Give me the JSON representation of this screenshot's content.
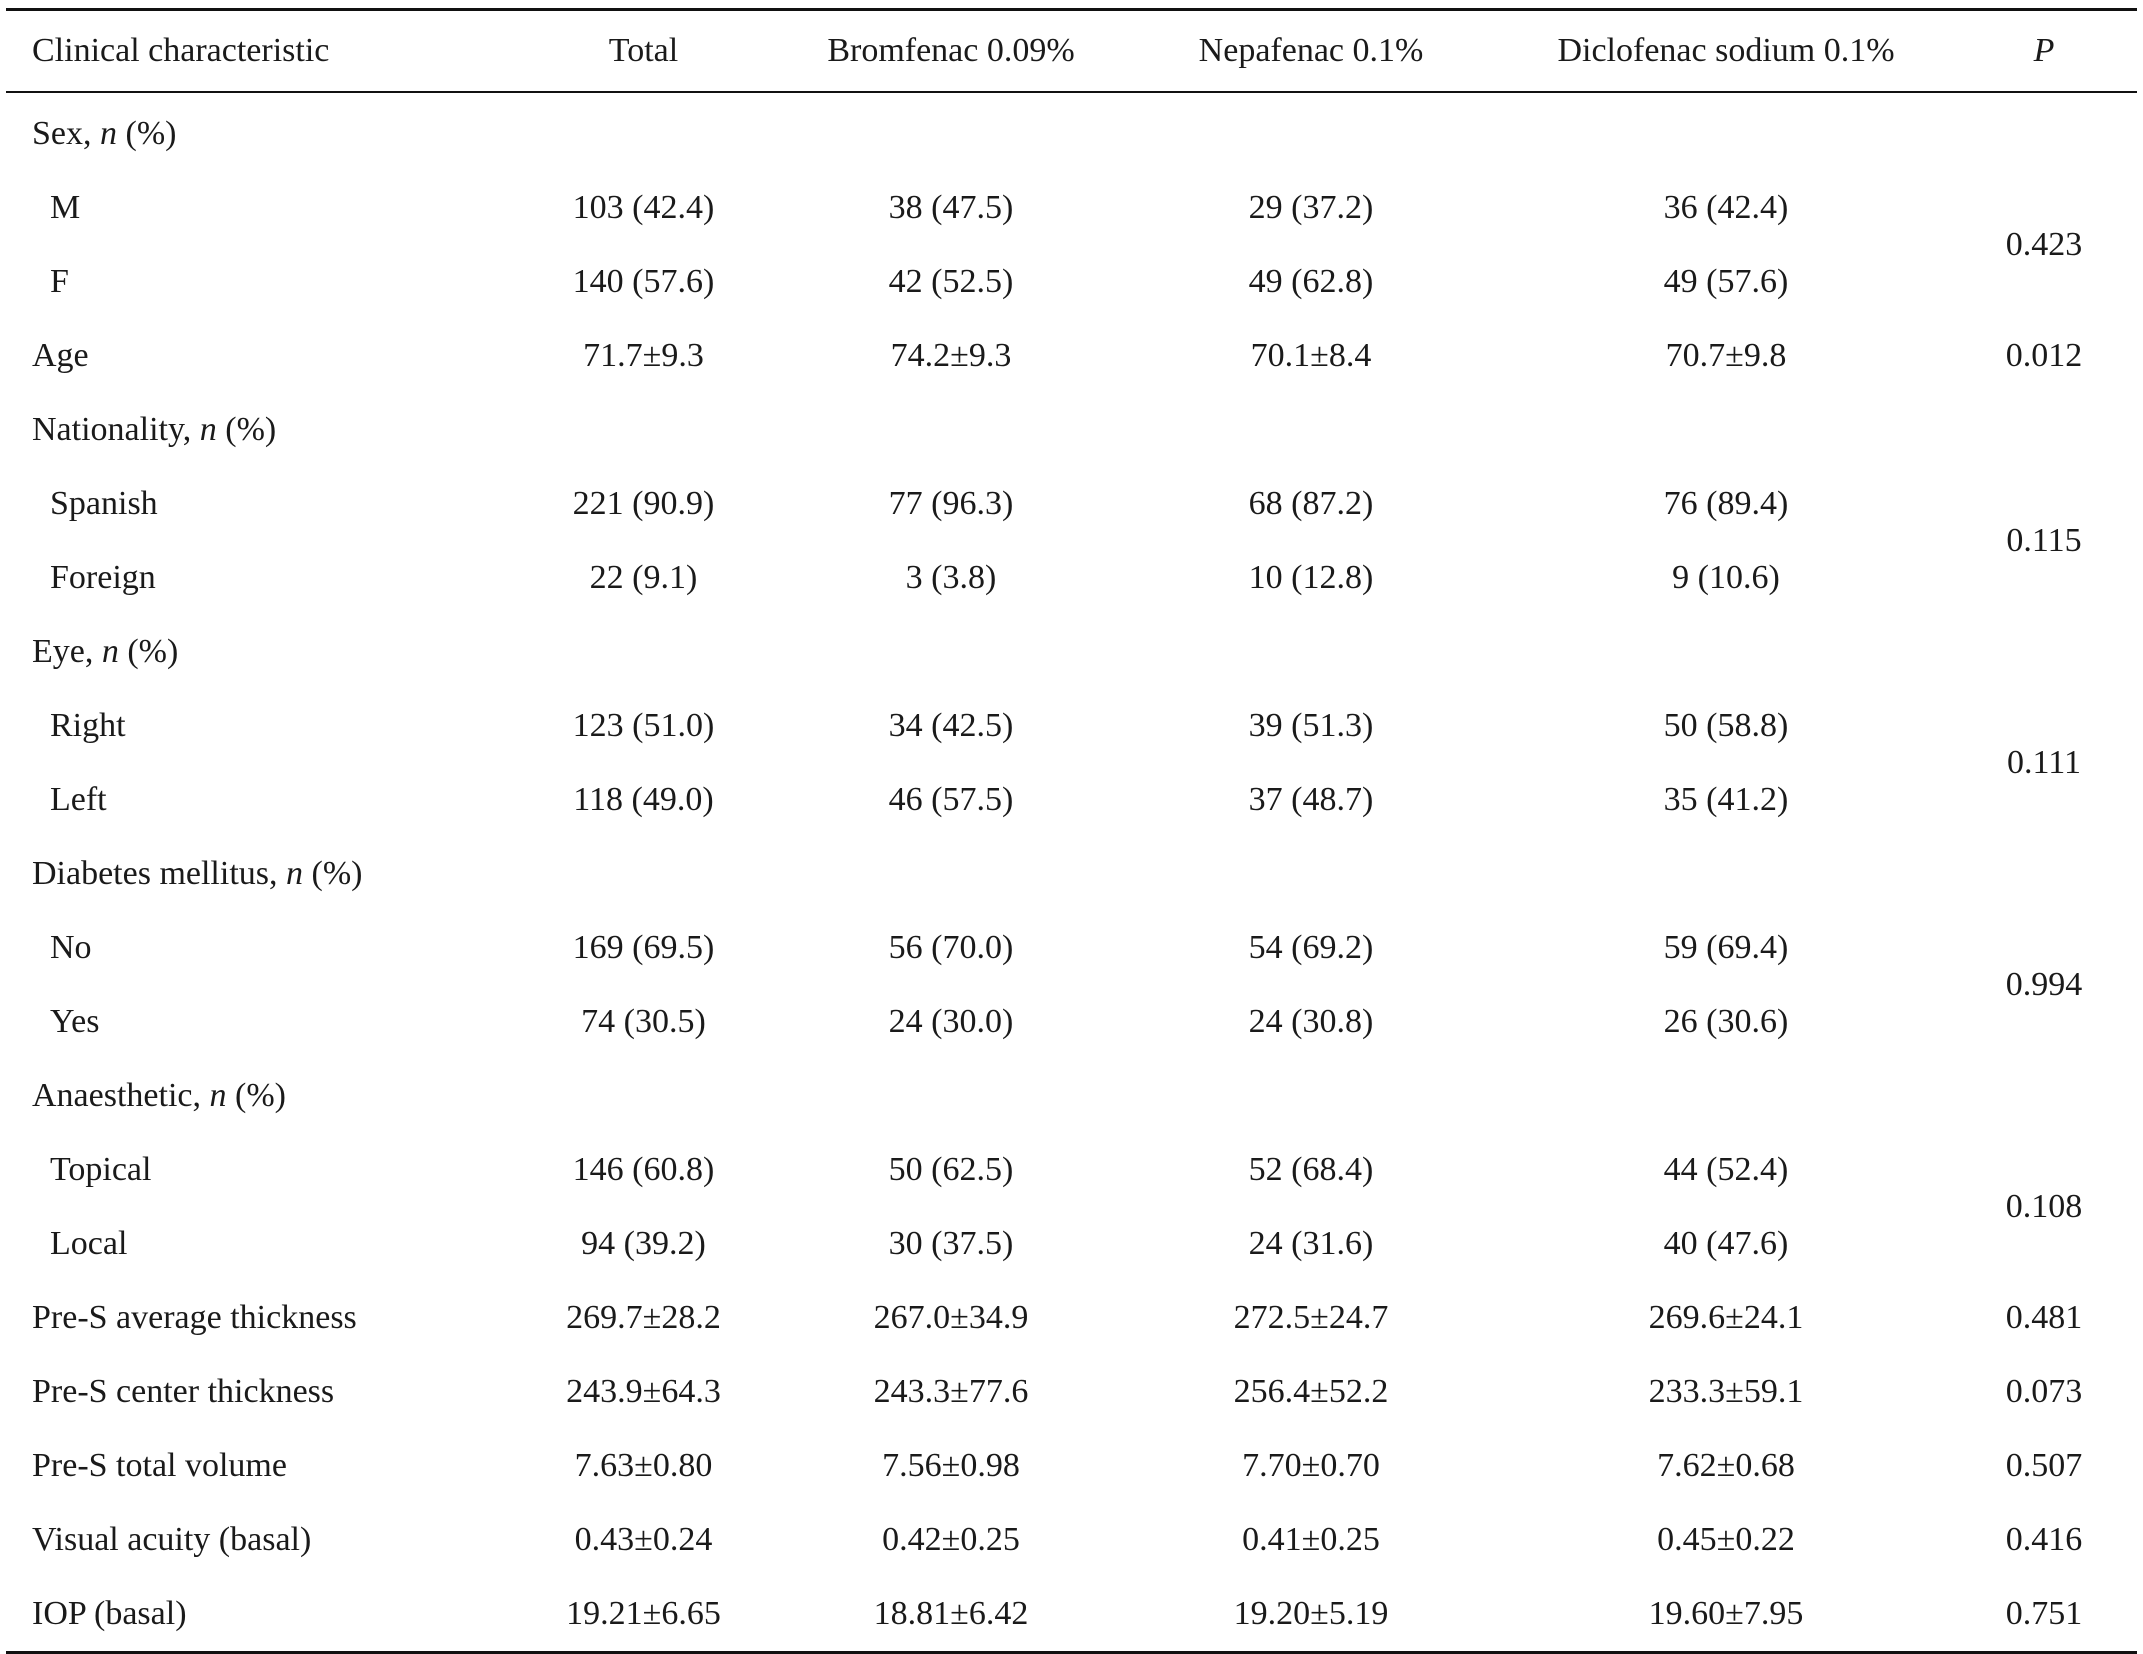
{
  "header": {
    "col0": "Clinical characteristic",
    "col1": "Total",
    "col2": "Bromfenac 0.09%",
    "col3": "Nepafenac 0.1%",
    "col4": "Diclofenac sodium 0.1%",
    "col5": "P"
  },
  "groups": {
    "sex": {
      "label": "Sex, ",
      "n": "n",
      "pct": " (%)",
      "p": "0.423",
      "rows": [
        {
          "label": "M",
          "total": "103 (42.4)",
          "brom": "38 (47.5)",
          "nepa": "29 (37.2)",
          "diclo": "36 (42.4)"
        },
        {
          "label": "F",
          "total": "140 (57.6)",
          "brom": "42 (52.5)",
          "nepa": "49 (62.8)",
          "diclo": "49 (57.6)"
        }
      ]
    },
    "age": {
      "label": "Age",
      "total": "71.7±9.3",
      "brom": "74.2±9.3",
      "nepa": "70.1±8.4",
      "diclo": "70.7±9.8",
      "p": "0.012"
    },
    "nationality": {
      "label": "Nationality, ",
      "n": "n",
      "pct": " (%)",
      "p": "0.115",
      "rows": [
        {
          "label": "Spanish",
          "total": "221 (90.9)",
          "brom": "77 (96.3)",
          "nepa": "68 (87.2)",
          "diclo": "76 (89.4)"
        },
        {
          "label": "Foreign",
          "total": "22 (9.1)",
          "brom": "3 (3.8)",
          "nepa": "10 (12.8)",
          "diclo": "9 (10.6)"
        }
      ]
    },
    "eye": {
      "label": "Eye, ",
      "n": "n",
      "pct": " (%)",
      "p": "0.111",
      "rows": [
        {
          "label": "Right",
          "total": "123 (51.0)",
          "brom": "34 (42.5)",
          "nepa": "39 (51.3)",
          "diclo": "50 (58.8)"
        },
        {
          "label": "Left",
          "total": "118 (49.0)",
          "brom": "46 (57.5)",
          "nepa": "37 (48.7)",
          "diclo": "35 (41.2)"
        }
      ]
    },
    "diabetes": {
      "label": "Diabetes mellitus, ",
      "n": "n",
      "pct": " (%)",
      "p": "0.994",
      "rows": [
        {
          "label": "No",
          "total": "169 (69.5)",
          "brom": "56 (70.0)",
          "nepa": "54 (69.2)",
          "diclo": "59 (69.4)"
        },
        {
          "label": "Yes",
          "total": "74 (30.5)",
          "brom": "24 (30.0)",
          "nepa": "24 (30.8)",
          "diclo": "26 (30.6)"
        }
      ]
    },
    "anaesthetic": {
      "label": "Anaesthetic, ",
      "n": "n",
      "pct": " (%)",
      "p": "0.108",
      "rows": [
        {
          "label": "Topical",
          "total": "146 (60.8)",
          "brom": "50 (62.5)",
          "nepa": "52 (68.4)",
          "diclo": "44 (52.4)"
        },
        {
          "label": "Local",
          "total": "94 (39.2)",
          "brom": "30 (37.5)",
          "nepa": "24 (31.6)",
          "diclo": "40 (47.6)"
        }
      ]
    },
    "continuous": [
      {
        "label": "Pre-S average thickness",
        "total": "269.7±28.2",
        "brom": "267.0±34.9",
        "nepa": "272.5±24.7",
        "diclo": "269.6±24.1",
        "p": "0.481"
      },
      {
        "label": "Pre-S center thickness",
        "total": "243.9±64.3",
        "brom": "243.3±77.6",
        "nepa": "256.4±52.2",
        "diclo": "233.3±59.1",
        "p": "0.073"
      },
      {
        "label": "Pre-S total volume",
        "total": "7.63±0.80",
        "brom": "7.56±0.98",
        "nepa": "7.70±0.70",
        "diclo": "7.62±0.68",
        "p": "0.507"
      },
      {
        "label": "Visual acuity (basal)",
        "total": "0.43±0.24",
        "brom": "0.42±0.25",
        "nepa": "0.41±0.25",
        "diclo": "0.45±0.22",
        "p": "0.416"
      },
      {
        "label": "IOP (basal)",
        "total": "19.21±6.65",
        "brom": "18.81±6.42",
        "nepa": "19.20±5.19",
        "diclo": "19.60±7.95",
        "p": "0.751"
      }
    ]
  }
}
